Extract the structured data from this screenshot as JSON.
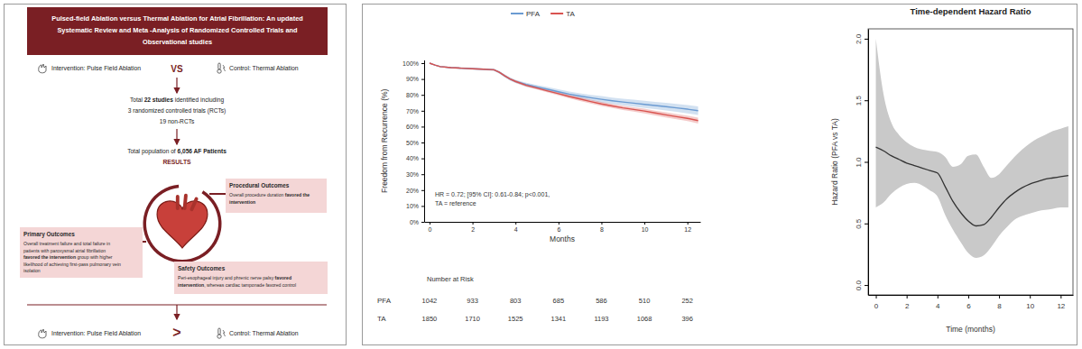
{
  "infographic": {
    "title": [
      "Pulsed-field Ablation versus Thermal Ablation for Atrial Fibrillation: An updated",
      "Systematic Review and Meta -Analysis of Randomized Controlled Trials and",
      "Observational studies"
    ],
    "comparison": {
      "intervention": "Intervention: Pulse Field Ablation",
      "vs": "VS",
      "control": "Control: Thermal Ablation"
    },
    "studies": [
      [
        "Total ",
        {
          "text": "22 studies",
          "bold": true
        },
        " identified including"
      ],
      [
        "3 randomized controlled trials (RCTs)"
      ],
      [
        "19 non-RCTs"
      ]
    ],
    "population": [
      [
        "Total population of ",
        {
          "text": "6,056 AF Patients",
          "bold": true
        }
      ]
    ],
    "results_heading": "RESULTS",
    "boxes": [
      {
        "heading": "Primary Outcomes",
        "lines": [
          [
            "Overall treatment failure and total failure in"
          ],
          [
            "patients with paroxysmal atrial fibrillation"
          ],
          [
            {
              "text": "favored the intervention",
              "bold": true
            },
            " group with higher"
          ],
          [
            "likelihood of achieving first-pass pulmonary vein"
          ],
          [
            "isolation"
          ]
        ]
      },
      {
        "heading": "Procedural Outcomes",
        "lines": [
          [
            "Overall procedure duration ",
            {
              "text": "favored the",
              "bold": true
            }
          ],
          [
            {
              "text": "intervention",
              "bold": true
            }
          ]
        ]
      },
      {
        "heading": "Safety Outcomes",
        "lines": [
          [
            "Peri-esophageal injury and phrenic nerve palsy ",
            {
              "text": "favored",
              "bold": true
            }
          ],
          [
            {
              "text": "intervention",
              "bold": true
            },
            ", whereas cardiac tamponade favored control"
          ]
        ]
      }
    ],
    "conclusion": {
      "intervention": "Intervention: Pulse Field Ablation",
      "symbol": ">",
      "control": "Control: Thermal Ablation"
    }
  },
  "chart_data": [
    {
      "type": "line",
      "legend": "top",
      "x_label": "Months",
      "y_label": "Freedom from Recurrence (%)",
      "annotations": [
        "HR = 0.72; [95% CI]: 0.61-0.84; p<0.001,",
        "TA = reference"
      ],
      "x": [
        0,
        0.25,
        0.5,
        1,
        1.5,
        2,
        2.5,
        3,
        3.25,
        3.5,
        3.75,
        4,
        4.5,
        5,
        5.5,
        6,
        6.5,
        7,
        7.5,
        8,
        8.5,
        9,
        9.5,
        10,
        10.5,
        11,
        11.5,
        12,
        12.5
      ],
      "xlim": [
        -0.25,
        12.6
      ],
      "xticks": [
        0,
        2,
        4,
        6,
        8,
        10,
        12
      ],
      "ylim": [
        0,
        102
      ],
      "yticks": [
        {
          "value": 0,
          "label": "0%"
        },
        {
          "value": 10,
          "label": "10%"
        },
        {
          "value": 20,
          "label": "20%"
        },
        {
          "value": 30,
          "label": "30%"
        },
        {
          "value": 40,
          "label": "40%"
        },
        {
          "value": 50,
          "label": "50%"
        },
        {
          "value": 60,
          "label": "60%"
        },
        {
          "value": 70,
          "label": "70%"
        },
        {
          "value": 80,
          "label": "80%"
        },
        {
          "value": 90,
          "label": "90%"
        },
        {
          "value": 100,
          "label": "100%"
        }
      ],
      "series": [
        {
          "name": "PFA",
          "color": "#6b9bd2",
          "values": [
            100,
            98.8,
            97.8,
            97.2,
            96.8,
            96.5,
            96.2,
            95.8,
            94.2,
            92,
            90,
            88.5,
            86.5,
            85,
            83.5,
            82,
            80.5,
            79.3,
            78.2,
            77.2,
            76.3,
            75.5,
            74.8,
            74,
            73.3,
            72.6,
            71.8,
            71,
            70
          ],
          "lower": [
            100,
            98.5,
            97.4,
            96.6,
            96.2,
            95.9,
            95.6,
            95.1,
            93.4,
            91.1,
            89,
            87.5,
            85.3,
            83.7,
            82.1,
            80.5,
            78.9,
            77.6,
            76.4,
            75.2,
            74.3,
            73.4,
            72.6,
            71.7,
            71,
            70.2,
            69.3,
            68.4,
            67.3
          ],
          "upper": [
            100,
            99.1,
            98.2,
            97.8,
            97.4,
            97.1,
            96.8,
            96.5,
            95,
            92.9,
            91,
            89.5,
            87.7,
            86.3,
            84.9,
            83.5,
            82.1,
            81,
            80,
            79.2,
            78.3,
            77.6,
            77,
            76.3,
            75.6,
            75,
            74.3,
            73.6,
            72.7
          ]
        },
        {
          "name": "TA",
          "color": "#d9534f",
          "values": [
            100,
            98.8,
            97.8,
            97.2,
            96.8,
            96.5,
            96.2,
            95.8,
            94.2,
            92,
            90,
            88.5,
            86,
            84.3,
            82.5,
            80.8,
            79,
            77.4,
            75.8,
            74.3,
            73,
            71.8,
            70.8,
            69.8,
            68.6,
            67.4,
            66.3,
            65.2,
            63.8
          ],
          "lower": [
            100,
            98.6,
            97.5,
            96.8,
            96.4,
            96.1,
            95.8,
            95.3,
            93.6,
            91.3,
            89.3,
            87.7,
            85.1,
            83.4,
            81.5,
            79.7,
            77.9,
            76.2,
            74.6,
            73,
            71.7,
            70.4,
            69.4,
            68.3,
            67.1,
            65.8,
            64.7,
            63.5,
            62
          ],
          "upper": [
            100,
            99,
            98.1,
            97.6,
            97.2,
            96.9,
            96.6,
            96.3,
            94.8,
            92.7,
            90.7,
            89.3,
            86.9,
            85.2,
            83.5,
            81.9,
            80.1,
            78.6,
            77,
            75.6,
            74.3,
            73.2,
            72.2,
            71.3,
            70.1,
            69,
            67.9,
            66.9,
            65.6
          ]
        }
      ],
      "risk_table": {
        "title": "Number at Risk",
        "x": [
          0,
          2,
          4,
          6,
          8,
          10,
          12
        ],
        "rows": [
          {
            "name": "PFA",
            "values": [
              1042,
              933,
              803,
              685,
              586,
              510,
              252
            ]
          },
          {
            "name": "TA",
            "values": [
              1850,
              1710,
              1525,
              1341,
              1193,
              1068,
              396
            ]
          }
        ]
      }
    },
    {
      "type": "line",
      "title": "Time-dependent Hazard Ratio",
      "x_label": "Time (months)",
      "y_label": "Hazard Ratio (PFA vs TA)",
      "color": "#333333",
      "x": [
        0,
        0.5,
        1,
        1.5,
        2,
        2.5,
        3,
        3.5,
        4,
        4.5,
        5,
        5.5,
        6,
        6.5,
        7,
        7.5,
        8,
        8.5,
        9,
        9.5,
        10,
        10.5,
        11,
        11.5,
        12,
        12.5
      ],
      "values": [
        1.12,
        1.09,
        1.05,
        1.02,
        0.99,
        0.97,
        0.95,
        0.93,
        0.91,
        0.8,
        0.68,
        0.59,
        0.52,
        0.48,
        0.49,
        0.55,
        0.63,
        0.7,
        0.75,
        0.79,
        0.82,
        0.84,
        0.86,
        0.87,
        0.88,
        0.89
      ],
      "upper": [
        2.0,
        1.55,
        1.32,
        1.22,
        1.16,
        1.12,
        1.1,
        1.09,
        1.08,
        1.04,
        0.96,
        0.98,
        1.05,
        1.06,
        0.96,
        0.87,
        0.9,
        0.97,
        1.04,
        1.1,
        1.15,
        1.19,
        1.22,
        1.25,
        1.27,
        1.29
      ],
      "lower": [
        0.63,
        0.67,
        0.74,
        0.79,
        0.82,
        0.83,
        0.81,
        0.77,
        0.72,
        0.57,
        0.45,
        0.35,
        0.26,
        0.22,
        0.24,
        0.31,
        0.4,
        0.47,
        0.53,
        0.56,
        0.58,
        0.6,
        0.61,
        0.62,
        0.63,
        0.63
      ],
      "xlim": [
        -0.5,
        12.8
      ],
      "xticks": [
        0,
        2,
        4,
        6,
        8,
        10,
        12
      ],
      "ylim": [
        -0.08,
        2.08
      ],
      "yticks": [
        {
          "value": 0,
          "label": "0.0"
        },
        {
          "value": 0.5,
          "label": "0.5"
        },
        {
          "value": 1,
          "label": "1.0"
        },
        {
          "value": 1.5,
          "label": "1.5"
        },
        {
          "value": 2,
          "label": "2.0"
        }
      ]
    }
  ]
}
